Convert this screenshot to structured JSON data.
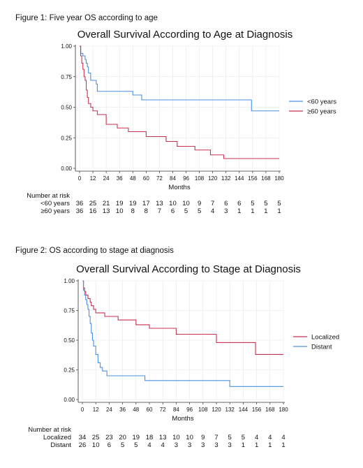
{
  "figures": [
    {
      "caption": "Figure 1: Five year OS according to age",
      "chart_data": {
        "type": "line",
        "title": "Overall Survival According to Age at Diagnosis",
        "xlabel": "Months",
        "ylabel": "",
        "xlim": [
          0,
          180
        ],
        "ylim": [
          0,
          1
        ],
        "x_ticks": [
          "0",
          "12",
          "24",
          "36",
          "48",
          "60",
          "72",
          "84",
          "96",
          "108",
          "120",
          "132",
          "144",
          "156",
          "168",
          "180"
        ],
        "y_ticks": [
          "0.00",
          "0.25",
          "0.50",
          "0.75",
          "1.00"
        ],
        "grid": true,
        "legend_position": "right",
        "series": [
          {
            "name": "<60 years",
            "color": "#4a90e2",
            "steps": [
              [
                0,
                1.0
              ],
              [
                1,
                0.94
              ],
              [
                3,
                0.92
              ],
              [
                5,
                0.89
              ],
              [
                6,
                0.86
              ],
              [
                7,
                0.83
              ],
              [
                8,
                0.78
              ],
              [
                10,
                0.72
              ],
              [
                15,
                0.69
              ],
              [
                16,
                0.63
              ],
              [
                48,
                0.6
              ],
              [
                56,
                0.56
              ],
              [
                155,
                0.47
              ],
              [
                180,
                0.47
              ]
            ]
          },
          {
            "name": "≥60 years",
            "color": "#c8324f",
            "steps": [
              [
                0,
                1.0
              ],
              [
                1,
                0.92
              ],
              [
                2,
                0.86
              ],
              [
                3,
                0.81
              ],
              [
                4,
                0.75
              ],
              [
                5,
                0.72
              ],
              [
                6,
                0.64
              ],
              [
                7,
                0.58
              ],
              [
                8,
                0.53
              ],
              [
                10,
                0.5
              ],
              [
                12,
                0.47
              ],
              [
                16,
                0.44
              ],
              [
                24,
                0.36
              ],
              [
                34,
                0.33
              ],
              [
                44,
                0.3
              ],
              [
                60,
                0.26
              ],
              [
                78,
                0.22
              ],
              [
                88,
                0.18
              ],
              [
                104,
                0.15
              ],
              [
                118,
                0.11
              ],
              [
                130,
                0.08
              ],
              [
                180,
                0.08
              ]
            ]
          }
        ],
        "risk_table": {
          "title": "Number at risk",
          "rows": [
            {
              "label": "<60 years",
              "values": [
                "36",
                "25",
                "21",
                "19",
                "19",
                "17",
                "13",
                "10",
                "10",
                "9",
                "7",
                "6",
                "6",
                "5",
                "5",
                "5"
              ]
            },
            {
              "label": "≥60 years",
              "values": [
                "36",
                "16",
                "13",
                "10",
                "8",
                "8",
                "7",
                "6",
                "5",
                "5",
                "4",
                "3",
                "1",
                "1",
                "1",
                "1"
              ]
            }
          ]
        }
      }
    },
    {
      "caption": "Figure 2: OS according to stage at diagnosis",
      "chart_data": {
        "type": "line",
        "title": "Overall Survival According to Stage at Diagnosis",
        "xlabel": "Months",
        "ylabel": "",
        "xlim": [
          0,
          180
        ],
        "ylim": [
          0,
          1
        ],
        "x_ticks": [
          "0",
          "12",
          "24",
          "36",
          "48",
          "60",
          "72",
          "84",
          "96",
          "108",
          "120",
          "132",
          "144",
          "156",
          "168",
          "180"
        ],
        "y_ticks": [
          "0.00",
          "0.25",
          "0.50",
          "0.75",
          "1.00"
        ],
        "grid": true,
        "legend_position": "right",
        "series": [
          {
            "name": "Localized",
            "color": "#c8324f",
            "steps": [
              [
                0,
                1.0
              ],
              [
                1,
                0.94
              ],
              [
                2,
                0.91
              ],
              [
                3,
                0.88
              ],
              [
                5,
                0.85
              ],
              [
                7,
                0.82
              ],
              [
                8,
                0.79
              ],
              [
                10,
                0.76
              ],
              [
                12,
                0.73
              ],
              [
                20,
                0.7
              ],
              [
                32,
                0.67
              ],
              [
                48,
                0.63
              ],
              [
                60,
                0.6
              ],
              [
                84,
                0.55
              ],
              [
                120,
                0.48
              ],
              [
                155,
                0.38
              ],
              [
                180,
                0.38
              ]
            ]
          },
          {
            "name": "Distant",
            "color": "#4a90e2",
            "steps": [
              [
                0,
                1.0
              ],
              [
                1,
                0.92
              ],
              [
                2,
                0.88
              ],
              [
                3,
                0.84
              ],
              [
                4,
                0.8
              ],
              [
                5,
                0.76
              ],
              [
                6,
                0.7
              ],
              [
                7,
                0.64
              ],
              [
                8,
                0.56
              ],
              [
                9,
                0.5
              ],
              [
                10,
                0.45
              ],
              [
                12,
                0.38
              ],
              [
                14,
                0.31
              ],
              [
                16,
                0.27
              ],
              [
                18,
                0.24
              ],
              [
                22,
                0.2
              ],
              [
                56,
                0.16
              ],
              [
                132,
                0.11
              ],
              [
                180,
                0.11
              ]
            ]
          }
        ],
        "risk_table": {
          "title": "Number at risk",
          "rows": [
            {
              "label": "Localized",
              "values": [
                "34",
                "25",
                "23",
                "20",
                "19",
                "18",
                "13",
                "10",
                "10",
                "9",
                "7",
                "5",
                "5",
                "4",
                "4",
                "4"
              ]
            },
            {
              "label": "Distant",
              "values": [
                "26",
                "10",
                "6",
                "5",
                "5",
                "4",
                "4",
                "3",
                "3",
                "3",
                "3",
                "3",
                "1",
                "1",
                "1",
                "1"
              ]
            }
          ]
        }
      }
    }
  ]
}
